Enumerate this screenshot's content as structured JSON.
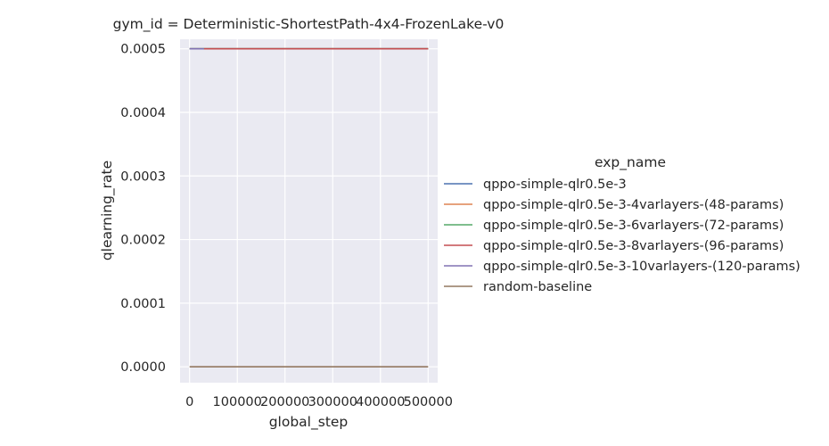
{
  "chart_data": {
    "type": "line",
    "title": "gym_id = Deterministic-ShortestPath-4x4-FrozenLake-v0",
    "xlabel": "global_step",
    "ylabel": "qlearning_rate",
    "xlim": [
      -20000,
      520000
    ],
    "ylim": [
      -2.5e-05,
      0.000515
    ],
    "xticks": [
      0,
      100000,
      200000,
      300000,
      400000,
      500000
    ],
    "xtick_labels": [
      "0",
      "100000",
      "200000",
      "300000",
      "400000",
      "500000"
    ],
    "yticks": [
      0,
      0.0001,
      0.0002,
      0.0003,
      0.0004,
      0.0005
    ],
    "ytick_labels": [
      "0.0000",
      "0.0001",
      "0.0002",
      "0.0003",
      "0.0004",
      "0.0005"
    ],
    "grid": true,
    "legend_title": "exp_name",
    "legend_position": "right",
    "series": [
      {
        "name": "qppo-simple-qlr0.5e-3",
        "color": "#4c72b0",
        "x": [
          0,
          500000
        ],
        "y": [
          0.0005,
          0.0005
        ]
      },
      {
        "name": "qppo-simple-qlr0.5e-3-4varlayers-(48-params)",
        "color": "#dd8452",
        "x": [
          0,
          500000
        ],
        "y": [
          0.0005,
          0.0005
        ]
      },
      {
        "name": "qppo-simple-qlr0.5e-3-6varlayers-(72-params)",
        "color": "#55a868",
        "x": [
          0,
          500000
        ],
        "y": [
          0.0005,
          0.0005
        ]
      },
      {
        "name": "qppo-simple-qlr0.5e-3-8varlayers-(96-params)",
        "color": "#c44e52",
        "x": [
          30000,
          500000
        ],
        "y": [
          0.0005,
          0.0005
        ]
      },
      {
        "name": "qppo-simple-qlr0.5e-3-10varlayers-(120-params)",
        "color": "#8172b3",
        "x": [
          0,
          30000
        ],
        "y": [
          0.0005,
          0.0005
        ]
      },
      {
        "name": "random-baseline",
        "color": "#937860",
        "x": [
          0,
          500000
        ],
        "y": [
          0,
          0
        ]
      }
    ]
  }
}
